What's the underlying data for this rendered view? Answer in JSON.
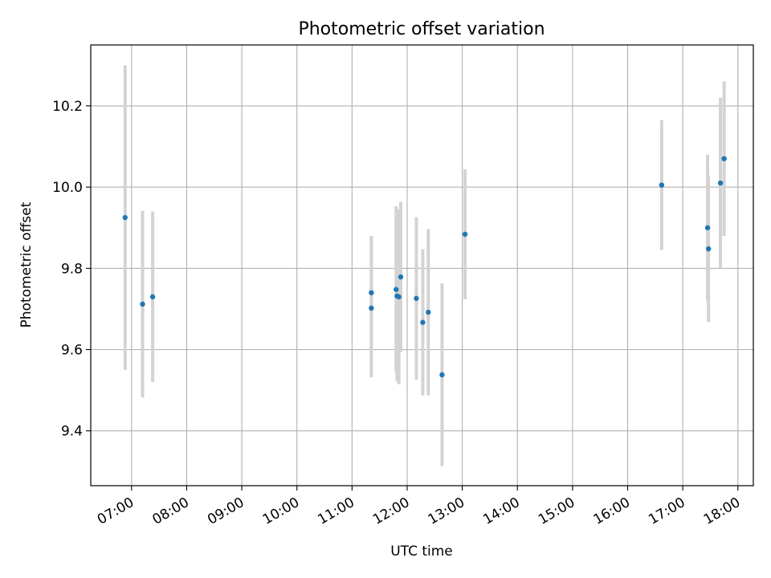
{
  "chart_data": {
    "type": "scatter",
    "title": "Photometric offset variation",
    "xlabel": "UTC time",
    "ylabel": "Photometric offset",
    "x_tick_labels": [
      "07:00",
      "08:00",
      "09:00",
      "10:00",
      "11:00",
      "12:00",
      "13:00",
      "14:00",
      "15:00",
      "16:00",
      "17:00",
      "18:00"
    ],
    "y_tick_labels": [
      "9.4",
      "9.6",
      "9.8",
      "10.0",
      "10.2"
    ],
    "x_ticks_hours": [
      7,
      8,
      9,
      10,
      11,
      12,
      13,
      14,
      15,
      16,
      17,
      18
    ],
    "y_ticks": [
      9.4,
      9.6,
      9.8,
      10.0,
      10.2
    ],
    "xlim_hours": [
      6.26,
      18.28
    ],
    "ylim": [
      9.265,
      10.35
    ],
    "grid": true,
    "marker_color": "#1f77b4",
    "errorbar_color": "#d3d3d3",
    "points": [
      {
        "time": "06:53",
        "y": 9.925,
        "err": 0.375
      },
      {
        "time": "07:12",
        "y": 9.712,
        "err": 0.23
      },
      {
        "time": "07:23",
        "y": 9.73,
        "err": 0.21
      },
      {
        "time": "11:21",
        "y": 9.74,
        "err": 0.14
      },
      {
        "time": "11:21",
        "y": 9.702,
        "err": 0.17
      },
      {
        "time": "11:48",
        "y": 9.748,
        "err": 0.205
      },
      {
        "time": "11:49",
        "y": 9.732,
        "err": 0.21
      },
      {
        "time": "11:51",
        "y": 9.73,
        "err": 0.215
      },
      {
        "time": "11:53",
        "y": 9.779,
        "err": 0.185
      },
      {
        "time": "12:10",
        "y": 9.726,
        "err": 0.2
      },
      {
        "time": "12:17",
        "y": 9.667,
        "err": 0.18
      },
      {
        "time": "12:23",
        "y": 9.692,
        "err": 0.205
      },
      {
        "time": "12:38",
        "y": 9.538,
        "err": 0.225
      },
      {
        "time": "13:03",
        "y": 9.884,
        "err": 0.16
      },
      {
        "time": "16:37",
        "y": 10.005,
        "err": 0.16
      },
      {
        "time": "17:27",
        "y": 9.9,
        "err": 0.18
      },
      {
        "time": "17:28",
        "y": 9.848,
        "err": 0.18
      },
      {
        "time": "17:41",
        "y": 10.01,
        "err": 0.21
      },
      {
        "time": "17:45",
        "y": 10.07,
        "err": 0.19
      }
    ]
  }
}
